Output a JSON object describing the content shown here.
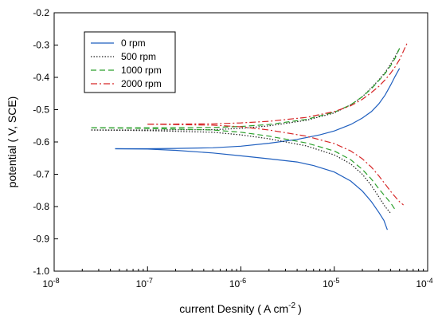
{
  "chart_data": {
    "type": "line",
    "title": "",
    "xlabel": "current Desnity ( A cm",
    "xlabel_sup": "-2",
    "xlabel_end": ")",
    "ylabel": "potential ( V, SCE)",
    "x_scale": "log",
    "xlim": [
      1e-08,
      0.0001
    ],
    "ylim": [
      -1.0,
      -0.2
    ],
    "x_ticks": [
      {
        "value": 1e-08,
        "base": "10",
        "exp": "-8"
      },
      {
        "value": 1e-07,
        "base": "10",
        "exp": "-7"
      },
      {
        "value": 1e-06,
        "base": "10",
        "exp": "-6"
      },
      {
        "value": 1e-05,
        "base": "10",
        "exp": "-5"
      },
      {
        "value": 0.0001,
        "base": "10",
        "exp": "-4"
      }
    ],
    "y_ticks": [
      {
        "value": -1.0,
        "label": "-1.0"
      },
      {
        "value": -0.9,
        "label": "-0.9"
      },
      {
        "value": -0.8,
        "label": "-0.8"
      },
      {
        "value": -0.7,
        "label": "-0.7"
      },
      {
        "value": -0.6,
        "label": "-0.6"
      },
      {
        "value": -0.5,
        "label": "-0.5"
      },
      {
        "value": -0.4,
        "label": "-0.4"
      },
      {
        "value": -0.3,
        "label": "-0.3"
      },
      {
        "value": -0.2,
        "label": "-0.2"
      }
    ],
    "grid": false,
    "legend_position": "top-left",
    "series": [
      {
        "name": "0 rpm",
        "color": "#1f5fbf",
        "dash": "solid",
        "branches": [
          [
            [
              4.5e-08,
              -0.621
            ],
            [
              1e-07,
              -0.621
            ],
            [
              2e-07,
              -0.62
            ],
            [
              5e-07,
              -0.618
            ],
            [
              1e-06,
              -0.613
            ],
            [
              2e-06,
              -0.604
            ],
            [
              4e-06,
              -0.592
            ],
            [
              7e-06,
              -0.578
            ],
            [
              1e-05,
              -0.566
            ],
            [
              1.5e-05,
              -0.546
            ],
            [
              2e-05,
              -0.526
            ],
            [
              2.5e-05,
              -0.506
            ],
            [
              3e-05,
              -0.482
            ],
            [
              3.5e-05,
              -0.455
            ],
            [
              4e-05,
              -0.425
            ],
            [
              4.5e-05,
              -0.396
            ],
            [
              5e-05,
              -0.372
            ]
          ],
          [
            [
              4.5e-08,
              -0.621
            ],
            [
              1e-07,
              -0.622
            ],
            [
              2e-07,
              -0.626
            ],
            [
              5e-07,
              -0.634
            ],
            [
              1e-06,
              -0.643
            ],
            [
              2e-06,
              -0.652
            ],
            [
              4e-06,
              -0.662
            ],
            [
              6e-06,
              -0.673
            ],
            [
              1e-05,
              -0.693
            ],
            [
              1.5e-05,
              -0.721
            ],
            [
              2e-05,
              -0.752
            ],
            [
              2.5e-05,
              -0.785
            ],
            [
              3e-05,
              -0.818
            ],
            [
              3.4e-05,
              -0.843
            ],
            [
              3.7e-05,
              -0.872
            ]
          ]
        ]
      },
      {
        "name": "500 rpm",
        "color": "#222222",
        "dash": "dotted",
        "branches": [
          [
            [
              2.5e-08,
              -0.563
            ],
            [
              1e-07,
              -0.563
            ],
            [
              5e-07,
              -0.562
            ],
            [
              1e-06,
              -0.558
            ],
            [
              2e-06,
              -0.55
            ],
            [
              5e-06,
              -0.533
            ],
            [
              1e-05,
              -0.51
            ],
            [
              1.5e-05,
              -0.485
            ],
            [
              2e-05,
              -0.46
            ],
            [
              2.5e-05,
              -0.432
            ],
            [
              3e-05,
              -0.408
            ],
            [
              3.5e-05,
              -0.385
            ],
            [
              4e-05,
              -0.36
            ],
            [
              4.5e-05,
              -0.335
            ],
            [
              5e-05,
              -0.31
            ]
          ],
          [
            [
              2.5e-08,
              -0.563
            ],
            [
              1e-07,
              -0.565
            ],
            [
              5e-07,
              -0.57
            ],
            [
              1e-06,
              -0.578
            ],
            [
              2e-06,
              -0.59
            ],
            [
              5e-06,
              -0.612
            ],
            [
              1e-05,
              -0.64
            ],
            [
              1.5e-05,
              -0.668
            ],
            [
              2e-05,
              -0.7
            ],
            [
              2.5e-05,
              -0.735
            ],
            [
              3e-05,
              -0.77
            ],
            [
              3.5e-05,
              -0.8
            ],
            [
              4e-05,
              -0.82
            ]
          ]
        ]
      },
      {
        "name": "1000 rpm",
        "color": "#2ca02c",
        "dash": "dashed",
        "branches": [
          [
            [
              2.5e-08,
              -0.556
            ],
            [
              1e-07,
              -0.556
            ],
            [
              5e-07,
              -0.555
            ],
            [
              1e-06,
              -0.552
            ],
            [
              2e-06,
              -0.546
            ],
            [
              5e-06,
              -0.53
            ],
            [
              1e-05,
              -0.508
            ],
            [
              1.5e-05,
              -0.485
            ],
            [
              2e-05,
              -0.46
            ],
            [
              2.5e-05,
              -0.435
            ],
            [
              3e-05,
              -0.41
            ],
            [
              3.5e-05,
              -0.388
            ],
            [
              4e-05,
              -0.365
            ],
            [
              4.5e-05,
              -0.34
            ],
            [
              5e-05,
              -0.31
            ]
          ],
          [
            [
              2.5e-08,
              -0.556
            ],
            [
              1e-07,
              -0.558
            ],
            [
              5e-07,
              -0.563
            ],
            [
              1e-06,
              -0.57
            ],
            [
              2e-06,
              -0.582
            ],
            [
              5e-06,
              -0.603
            ],
            [
              1e-05,
              -0.628
            ],
            [
              1.5e-05,
              -0.655
            ],
            [
              2e-05,
              -0.685
            ],
            [
              2.5e-05,
              -0.715
            ],
            [
              3e-05,
              -0.745
            ],
            [
              3.5e-05,
              -0.768
            ],
            [
              4e-05,
              -0.788
            ],
            [
              4.5e-05,
              -0.81
            ]
          ]
        ]
      },
      {
        "name": "2000 rpm",
        "color": "#d62728",
        "dash": "dashdot",
        "branches": [
          [
            [
              1e-07,
              -0.545
            ],
            [
              5e-07,
              -0.544
            ],
            [
              1e-06,
              -0.541
            ],
            [
              2e-06,
              -0.536
            ],
            [
              5e-06,
              -0.524
            ],
            [
              1e-05,
              -0.506
            ],
            [
              1.5e-05,
              -0.488
            ],
            [
              2e-05,
              -0.468
            ],
            [
              2.5e-05,
              -0.447
            ],
            [
              3e-05,
              -0.428
            ],
            [
              3.5e-05,
              -0.408
            ],
            [
              4e-05,
              -0.388
            ],
            [
              4.5e-05,
              -0.367
            ],
            [
              5e-05,
              -0.345
            ],
            [
              6e-05,
              -0.295
            ]
          ],
          [
            [
              1e-07,
              -0.545
            ],
            [
              5e-07,
              -0.548
            ],
            [
              1e-06,
              -0.553
            ],
            [
              2e-06,
              -0.563
            ],
            [
              5e-06,
              -0.582
            ],
            [
              1e-05,
              -0.605
            ],
            [
              1.5e-05,
              -0.628
            ],
            [
              2e-05,
              -0.652
            ],
            [
              2.5e-05,
              -0.678
            ],
            [
              3e-05,
              -0.705
            ],
            [
              3.5e-05,
              -0.73
            ],
            [
              4e-05,
              -0.752
            ],
            [
              4.5e-05,
              -0.77
            ],
            [
              5e-05,
              -0.785
            ],
            [
              5.5e-05,
              -0.795
            ]
          ]
        ]
      }
    ]
  }
}
